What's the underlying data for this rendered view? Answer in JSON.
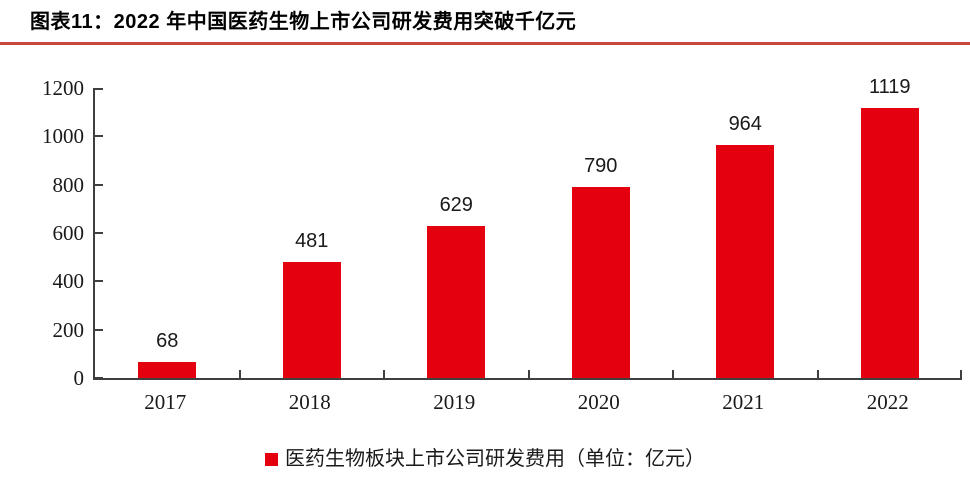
{
  "page": {
    "title": "图表11：2022 年中国医药生物上市公司研发费用突破千亿元"
  },
  "colors": {
    "bar_red": "#e4000f",
    "rule_red": "#c8473d",
    "axis_gray": "#3f3f3f"
  },
  "legend": {
    "swatch_icon": "red-square-series-marker",
    "label": "医药生物板块上市公司研发费用（单位：亿元）"
  },
  "chart_data": {
    "type": "bar",
    "title": "2022 年中国医药生物上市公司研发费用突破千亿元",
    "categories": [
      "2017",
      "2018",
      "2019",
      "2020",
      "2021",
      "2022"
    ],
    "values": [
      68,
      481,
      629,
      790,
      964,
      1119
    ],
    "series_name": "医药生物板块上市公司研发费用（单位：亿元）",
    "xlabel": "",
    "ylabel": "",
    "ylim": [
      0,
      1200
    ],
    "ytick_step": 200,
    "ytick_labels": [
      "0",
      "200",
      "400",
      "600",
      "800",
      "1000",
      "1200"
    ],
    "grid": false,
    "data_labels": true,
    "legend_position": "bottom",
    "bar_color": "#e4000f"
  }
}
